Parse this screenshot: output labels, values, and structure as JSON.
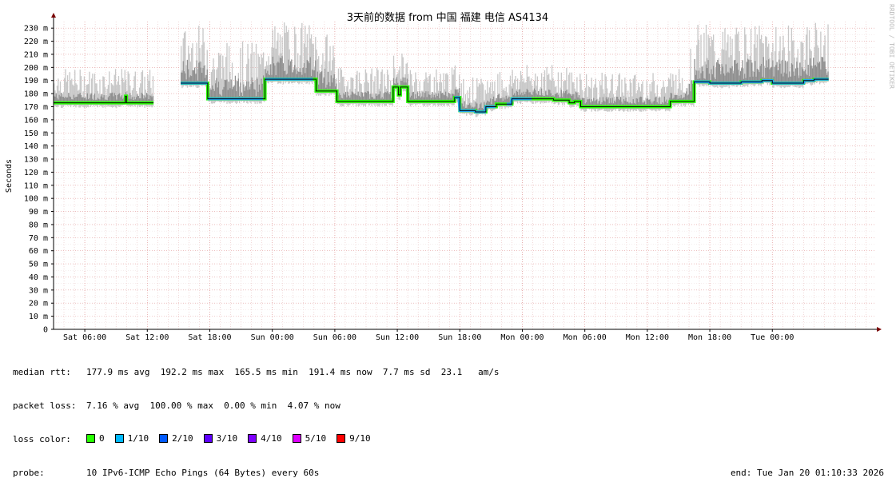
{
  "chart_data": {
    "type": "line",
    "title": "3天前的数据 from 中国 福建 电信 AS4134",
    "ylabel": "Seconds",
    "watermark": "RRDTOOL / TOBI OETIKER",
    "ylim": [
      0,
      0.235
    ],
    "yticks": [
      {
        "value": 0,
        "label": "0"
      },
      {
        "value": 0.01,
        "label": "10 m"
      },
      {
        "value": 0.02,
        "label": "20 m"
      },
      {
        "value": 0.03,
        "label": "30 m"
      },
      {
        "value": 0.04,
        "label": "40 m"
      },
      {
        "value": 0.05,
        "label": "50 m"
      },
      {
        "value": 0.06,
        "label": "60 m"
      },
      {
        "value": 0.07,
        "label": "70 m"
      },
      {
        "value": 0.08,
        "label": "80 m"
      },
      {
        "value": 0.09,
        "label": "90 m"
      },
      {
        "value": 0.1,
        "label": "100 m"
      },
      {
        "value": 0.11,
        "label": "110 m"
      },
      {
        "value": 0.12,
        "label": "120 m"
      },
      {
        "value": 0.13,
        "label": "130 m"
      },
      {
        "value": 0.14,
        "label": "140 m"
      },
      {
        "value": 0.15,
        "label": "150 m"
      },
      {
        "value": 0.16,
        "label": "160 m"
      },
      {
        "value": 0.17,
        "label": "170 m"
      },
      {
        "value": 0.18,
        "label": "180 m"
      },
      {
        "value": 0.19,
        "label": "190 m"
      },
      {
        "value": 0.2,
        "label": "200 m"
      },
      {
        "value": 0.21,
        "label": "210 m"
      },
      {
        "value": 0.22,
        "label": "220 m"
      },
      {
        "value": 0.23,
        "label": "230 m"
      }
    ],
    "xlim": [
      0,
      78.8
    ],
    "xticks": [
      {
        "value": 3,
        "label": "Sat 06:00"
      },
      {
        "value": 9,
        "label": "Sat 12:00"
      },
      {
        "value": 15,
        "label": "Sat 18:00"
      },
      {
        "value": 21,
        "label": "Sun 00:00"
      },
      {
        "value": 27,
        "label": "Sun 06:00"
      },
      {
        "value": 33,
        "label": "Sun 12:00"
      },
      {
        "value": 39,
        "label": "Sun 18:00"
      },
      {
        "value": 45,
        "label": "Mon 00:00"
      },
      {
        "value": 51,
        "label": "Mon 06:00"
      },
      {
        "value": 57,
        "label": "Mon 12:00"
      },
      {
        "value": 63,
        "label": "Mon 18:00"
      },
      {
        "value": 69,
        "label": "Tue 00:00"
      }
    ],
    "median_series": [
      [
        0,
        0.173
      ],
      [
        6.8,
        0.173
      ],
      [
        6.9,
        0.178
      ],
      [
        7.0,
        0.173
      ],
      [
        9.6,
        0.173
      ],
      [
        12.2,
        0.188
      ],
      [
        14.6,
        0.188
      ],
      [
        14.8,
        0.176
      ],
      [
        20.2,
        0.176
      ],
      [
        20.3,
        0.191
      ],
      [
        25.0,
        0.191
      ],
      [
        25.2,
        0.182
      ],
      [
        27.0,
        0.182
      ],
      [
        27.2,
        0.174
      ],
      [
        32.2,
        0.174
      ],
      [
        32.6,
        0.185
      ],
      [
        33.1,
        0.179
      ],
      [
        33.3,
        0.185
      ],
      [
        33.8,
        0.185
      ],
      [
        34.0,
        0.174
      ],
      [
        38.5,
        0.177
      ],
      [
        39.0,
        0.167
      ],
      [
        40.5,
        0.166
      ],
      [
        41.5,
        0.17
      ],
      [
        42.5,
        0.172
      ],
      [
        44.0,
        0.176
      ],
      [
        45.0,
        0.176
      ],
      [
        46.0,
        0.176
      ],
      [
        48.0,
        0.175
      ],
      [
        49.5,
        0.173
      ],
      [
        50.0,
        0.174
      ],
      [
        50.6,
        0.17
      ],
      [
        59.0,
        0.17
      ],
      [
        59.2,
        0.174
      ],
      [
        61.0,
        0.174
      ],
      [
        61.5,
        0.189
      ],
      [
        63.0,
        0.188
      ],
      [
        66.0,
        0.189
      ],
      [
        68.0,
        0.19
      ],
      [
        69.0,
        0.188
      ],
      [
        72.0,
        0.19
      ],
      [
        73.0,
        0.191
      ],
      [
        74.4,
        0.191
      ]
    ],
    "gaps_x": [
      [
        9.6,
        12.2
      ]
    ]
  },
  "stats": {
    "median_rtt_label": "median rtt:",
    "median_rtt": "177.9 ms avg  192.2 ms max  165.5 ms min  191.4 ms now  7.7 ms sd  23.1   am/s",
    "packet_loss_label": "packet loss:",
    "packet_loss": "7.16 % avg  100.00 % max  0.00 % min  4.07 % now",
    "loss_color_label": "loss color:",
    "loss_colors": [
      {
        "label": "0",
        "color": "#26ff00"
      },
      {
        "label": "1/10",
        "color": "#00b8ff"
      },
      {
        "label": "2/10",
        "color": "#0059ff"
      },
      {
        "label": "3/10",
        "color": "#5e00ff"
      },
      {
        "label": "4/10",
        "color": "#7e00ff"
      },
      {
        "label": "5/10",
        "color": "#dd00ff"
      },
      {
        "label": "9/10",
        "color": "#ff0000"
      }
    ],
    "probe_label": "probe:",
    "probe": "10 IPv6-ICMP Echo Pings (64 Bytes) every 60s",
    "end": "end: Tue Jan 20 01:10:33 2026"
  }
}
